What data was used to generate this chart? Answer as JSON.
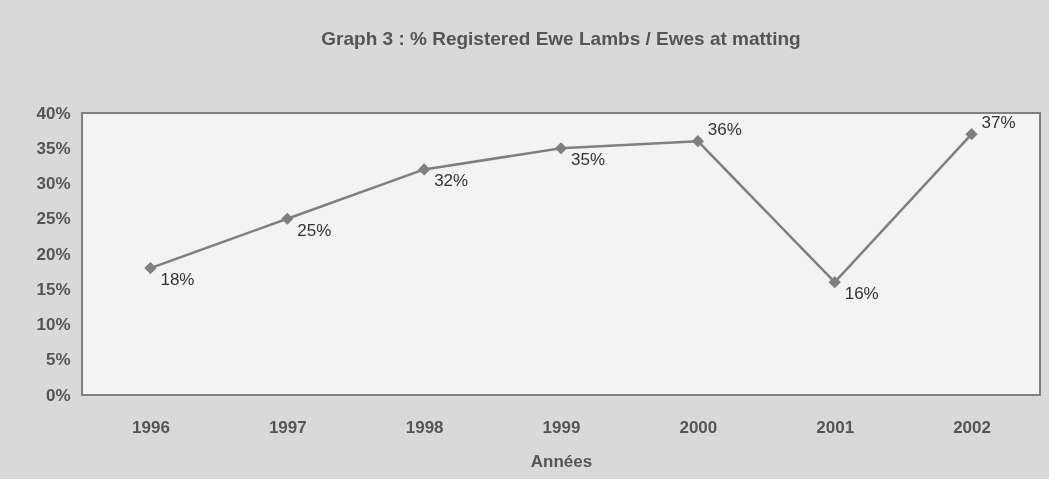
{
  "chart_data": {
    "type": "line",
    "title": "Graph 3 : % Registered Ewe Lambs / Ewes at matting",
    "xlabel": "Années",
    "categories": [
      "1996",
      "1997",
      "1998",
      "1999",
      "2000",
      "2001",
      "2002"
    ],
    "series": [
      {
        "color": "#7f7f7f",
        "values": [
          18,
          25,
          32,
          35,
          36,
          16,
          37
        ],
        "value_labels": [
          "18%",
          "25%",
          "32%",
          "35%",
          "36%",
          "16%",
          "37%"
        ]
      }
    ],
    "ylim": [
      0,
      40
    ],
    "yticks": [
      {
        "value": 0,
        "label": "0%"
      },
      {
        "value": 5,
        "label": "5%"
      },
      {
        "value": 10,
        "label": "10%"
      },
      {
        "value": 15,
        "label": "15%"
      },
      {
        "value": 20,
        "label": "20%"
      },
      {
        "value": 25,
        "label": "25%"
      },
      {
        "value": 30,
        "label": "30%"
      },
      {
        "value": 35,
        "label": "35%"
      },
      {
        "value": 40,
        "label": "40%"
      }
    ],
    "grid": false,
    "marker": "diamond",
    "line_style": "solid"
  }
}
